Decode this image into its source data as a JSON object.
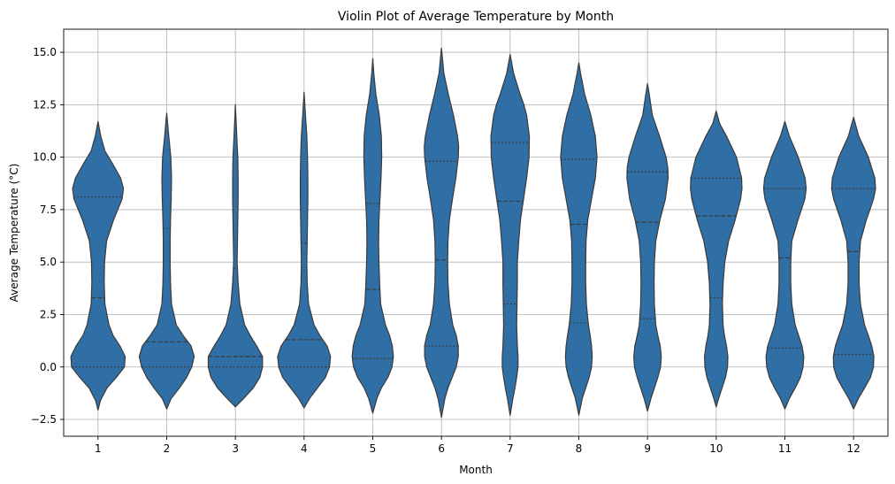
{
  "chart_data": {
    "type": "violin",
    "title": "Violin Plot of Average Temperature by Month",
    "xlabel": "Month",
    "ylabel": "Average Temperature (°C)",
    "categories": [
      "1",
      "2",
      "3",
      "4",
      "5",
      "6",
      "7",
      "8",
      "9",
      "10",
      "11",
      "12"
    ],
    "ylim": [
      -3.3,
      16.1
    ],
    "yticks": [
      -2.5,
      0.0,
      2.5,
      5.0,
      7.5,
      10.0,
      12.5,
      15.0
    ],
    "ytick_labels": [
      "−2.5",
      "0.0",
      "2.5",
      "5.0",
      "7.5",
      "10.0",
      "12.5",
      "15.0"
    ],
    "grid": true,
    "fill_color": "#2f6fa5",
    "edge_color": "#3a3a3a",
    "inner": "quartile",
    "violins": [
      {
        "month": "1",
        "min": -2.05,
        "max": 11.7,
        "q1": 0.0,
        "median": 3.3,
        "q3": 8.1,
        "density": [
          [
            -2.05,
            0
          ],
          [
            -1.6,
            0.07
          ],
          [
            -1.0,
            0.26
          ],
          [
            -0.5,
            0.53
          ],
          [
            0.0,
            0.77
          ],
          [
            0.5,
            0.79
          ],
          [
            1.0,
            0.64
          ],
          [
            1.5,
            0.44
          ],
          [
            2.0,
            0.32
          ],
          [
            3.0,
            0.2
          ],
          [
            4.0,
            0.18
          ],
          [
            5.0,
            0.19
          ],
          [
            6.0,
            0.25
          ],
          [
            7.0,
            0.45
          ],
          [
            8.0,
            0.7
          ],
          [
            8.5,
            0.74
          ],
          [
            9.0,
            0.66
          ],
          [
            9.7,
            0.42
          ],
          [
            10.3,
            0.2
          ],
          [
            11.0,
            0.08
          ],
          [
            11.7,
            0
          ]
        ]
      },
      {
        "month": "2",
        "min": -2.0,
        "max": 12.1,
        "q1": 0.0,
        "median": 1.2,
        "q3": 6.6,
        "density": [
          [
            -2.0,
            0
          ],
          [
            -1.5,
            0.13
          ],
          [
            -1.0,
            0.37
          ],
          [
            -0.5,
            0.58
          ],
          [
            0.0,
            0.73
          ],
          [
            0.5,
            0.8
          ],
          [
            1.0,
            0.71
          ],
          [
            1.5,
            0.48
          ],
          [
            2.0,
            0.28
          ],
          [
            3.0,
            0.14
          ],
          [
            4.0,
            0.11
          ],
          [
            5.0,
            0.1
          ],
          [
            6.0,
            0.1
          ],
          [
            7.0,
            0.11
          ],
          [
            8.0,
            0.13
          ],
          [
            9.0,
            0.14
          ],
          [
            10.0,
            0.12
          ],
          [
            11.0,
            0.06
          ],
          [
            12.1,
            0
          ]
        ]
      },
      {
        "month": "3",
        "min": -1.9,
        "max": 12.5,
        "q1": 0.0,
        "median": 0.5,
        "q3": 4.7,
        "density": [
          [
            -1.9,
            0
          ],
          [
            -1.5,
            0.24
          ],
          [
            -1.0,
            0.52
          ],
          [
            -0.5,
            0.71
          ],
          [
            0.0,
            0.79
          ],
          [
            0.5,
            0.79
          ],
          [
            1.0,
            0.62
          ],
          [
            1.5,
            0.43
          ],
          [
            2.0,
            0.27
          ],
          [
            3.0,
            0.13
          ],
          [
            4.0,
            0.08
          ],
          [
            5.0,
            0.05
          ],
          [
            6.0,
            0.06
          ],
          [
            7.0,
            0.07
          ],
          [
            8.0,
            0.08
          ],
          [
            9.0,
            0.08
          ],
          [
            10.0,
            0.07
          ],
          [
            11.0,
            0.04
          ],
          [
            12.5,
            0
          ]
        ]
      },
      {
        "month": "4",
        "min": -1.95,
        "max": 13.1,
        "q1": 0.0,
        "median": 1.3,
        "q3": 5.9,
        "density": [
          [
            -1.95,
            0
          ],
          [
            -1.5,
            0.16
          ],
          [
            -1.0,
            0.39
          ],
          [
            -0.5,
            0.62
          ],
          [
            0.0,
            0.74
          ],
          [
            0.5,
            0.77
          ],
          [
            1.0,
            0.67
          ],
          [
            1.5,
            0.46
          ],
          [
            2.0,
            0.29
          ],
          [
            3.0,
            0.13
          ],
          [
            4.0,
            0.09
          ],
          [
            5.0,
            0.08
          ],
          [
            6.0,
            0.09
          ],
          [
            7.0,
            0.1
          ],
          [
            8.0,
            0.11
          ],
          [
            9.0,
            0.11
          ],
          [
            10.0,
            0.1
          ],
          [
            11.0,
            0.08
          ],
          [
            12.0,
            0.04
          ],
          [
            13.1,
            0
          ]
        ]
      },
      {
        "month": "5",
        "min": -2.2,
        "max": 14.7,
        "q1": 0.4,
        "median": 3.7,
        "q3": 7.8,
        "density": [
          [
            -2.2,
            0
          ],
          [
            -1.5,
            0.12
          ],
          [
            -1.0,
            0.25
          ],
          [
            -0.5,
            0.44
          ],
          [
            0.0,
            0.56
          ],
          [
            0.5,
            0.6
          ],
          [
            1.0,
            0.57
          ],
          [
            1.5,
            0.49
          ],
          [
            2.0,
            0.37
          ],
          [
            3.0,
            0.23
          ],
          [
            4.0,
            0.2
          ],
          [
            5.0,
            0.18
          ],
          [
            6.0,
            0.17
          ],
          [
            7.0,
            0.18
          ],
          [
            8.0,
            0.21
          ],
          [
            9.0,
            0.24
          ],
          [
            10.0,
            0.26
          ],
          [
            11.0,
            0.25
          ],
          [
            12.0,
            0.19
          ],
          [
            13.0,
            0.09
          ],
          [
            14.0,
            0.03
          ],
          [
            14.7,
            0
          ]
        ]
      },
      {
        "month": "6",
        "min": -2.4,
        "max": 15.2,
        "q1": 1.0,
        "median": 5.1,
        "q3": 9.8,
        "density": [
          [
            -2.4,
            0
          ],
          [
            -1.5,
            0.1
          ],
          [
            -1.0,
            0.19
          ],
          [
            -0.5,
            0.31
          ],
          [
            0.0,
            0.43
          ],
          [
            0.5,
            0.49
          ],
          [
            1.0,
            0.49
          ],
          [
            1.5,
            0.43
          ],
          [
            2.0,
            0.33
          ],
          [
            3.0,
            0.23
          ],
          [
            4.0,
            0.19
          ],
          [
            5.0,
            0.18
          ],
          [
            6.0,
            0.19
          ],
          [
            7.0,
            0.23
          ],
          [
            8.0,
            0.32
          ],
          [
            9.0,
            0.42
          ],
          [
            10.0,
            0.49
          ],
          [
            10.5,
            0.5
          ],
          [
            11.0,
            0.47
          ],
          [
            12.0,
            0.35
          ],
          [
            13.0,
            0.2
          ],
          [
            14.0,
            0.07
          ],
          [
            15.2,
            0
          ]
        ]
      },
      {
        "month": "7",
        "min": -2.3,
        "max": 14.9,
        "q1": 3.0,
        "median": 7.9,
        "q3": 10.7,
        "density": [
          [
            -2.3,
            0
          ],
          [
            -1.5,
            0.08
          ],
          [
            -1.0,
            0.14
          ],
          [
            -0.5,
            0.19
          ],
          [
            0.0,
            0.23
          ],
          [
            0.5,
            0.23
          ],
          [
            1.0,
            0.21
          ],
          [
            2.0,
            0.19
          ],
          [
            3.0,
            0.2
          ],
          [
            4.0,
            0.21
          ],
          [
            5.0,
            0.21
          ],
          [
            6.0,
            0.25
          ],
          [
            7.0,
            0.3
          ],
          [
            8.0,
            0.39
          ],
          [
            9.0,
            0.48
          ],
          [
            10.0,
            0.55
          ],
          [
            11.0,
            0.56
          ],
          [
            12.0,
            0.48
          ],
          [
            12.5,
            0.4
          ],
          [
            13.0,
            0.29
          ],
          [
            14.0,
            0.1
          ],
          [
            14.9,
            0
          ]
        ]
      },
      {
        "month": "8",
        "min": -2.3,
        "max": 14.5,
        "q1": 2.1,
        "median": 6.8,
        "q3": 9.9,
        "density": [
          [
            -2.3,
            0
          ],
          [
            -1.5,
            0.1
          ],
          [
            -1.0,
            0.2
          ],
          [
            -0.5,
            0.3
          ],
          [
            0.0,
            0.37
          ],
          [
            0.5,
            0.39
          ],
          [
            1.0,
            0.37
          ],
          [
            1.5,
            0.33
          ],
          [
            2.0,
            0.28
          ],
          [
            3.0,
            0.22
          ],
          [
            4.0,
            0.2
          ],
          [
            5.0,
            0.2
          ],
          [
            6.0,
            0.21
          ],
          [
            7.0,
            0.26
          ],
          [
            8.0,
            0.37
          ],
          [
            9.0,
            0.48
          ],
          [
            10.0,
            0.53
          ],
          [
            11.0,
            0.48
          ],
          [
            12.0,
            0.35
          ],
          [
            13.0,
            0.17
          ],
          [
            14.0,
            0.05
          ],
          [
            14.5,
            0
          ]
        ]
      },
      {
        "month": "9",
        "min": -2.1,
        "max": 13.5,
        "q1": 2.3,
        "median": 6.9,
        "q3": 9.3,
        "density": [
          [
            -2.1,
            0
          ],
          [
            -1.5,
            0.1
          ],
          [
            -1.0,
            0.2
          ],
          [
            -0.5,
            0.3
          ],
          [
            0.0,
            0.38
          ],
          [
            0.5,
            0.4
          ],
          [
            1.0,
            0.37
          ],
          [
            1.5,
            0.3
          ],
          [
            2.0,
            0.24
          ],
          [
            3.0,
            0.2
          ],
          [
            4.0,
            0.19
          ],
          [
            5.0,
            0.2
          ],
          [
            6.0,
            0.24
          ],
          [
            7.0,
            0.36
          ],
          [
            8.0,
            0.52
          ],
          [
            9.0,
            0.6
          ],
          [
            9.5,
            0.59
          ],
          [
            10.0,
            0.54
          ],
          [
            11.0,
            0.35
          ],
          [
            12.0,
            0.14
          ],
          [
            13.0,
            0.05
          ],
          [
            13.5,
            0
          ]
        ]
      },
      {
        "month": "10",
        "min": -1.9,
        "max": 12.2,
        "q1": 3.3,
        "median": 7.2,
        "q3": 9.0,
        "density": [
          [
            -1.9,
            0
          ],
          [
            -1.5,
            0.07
          ],
          [
            -1.0,
            0.17
          ],
          [
            -0.5,
            0.27
          ],
          [
            0.0,
            0.33
          ],
          [
            0.5,
            0.34
          ],
          [
            1.0,
            0.3
          ],
          [
            1.5,
            0.24
          ],
          [
            2.0,
            0.2
          ],
          [
            3.0,
            0.18
          ],
          [
            4.0,
            0.2
          ],
          [
            5.0,
            0.25
          ],
          [
            6.0,
            0.36
          ],
          [
            7.0,
            0.55
          ],
          [
            8.0,
            0.71
          ],
          [
            8.5,
            0.75
          ],
          [
            9.0,
            0.74
          ],
          [
            10.0,
            0.59
          ],
          [
            11.0,
            0.3
          ],
          [
            11.6,
            0.1
          ],
          [
            12.2,
            0
          ]
        ]
      },
      {
        "month": "11",
        "min": -2.0,
        "max": 11.7,
        "q1": 0.9,
        "median": 5.2,
        "q3": 8.5,
        "density": [
          [
            -2.0,
            0
          ],
          [
            -1.5,
            0.13
          ],
          [
            -1.0,
            0.3
          ],
          [
            -0.5,
            0.45
          ],
          [
            0.0,
            0.53
          ],
          [
            0.5,
            0.55
          ],
          [
            1.0,
            0.5
          ],
          [
            1.5,
            0.4
          ],
          [
            2.0,
            0.3
          ],
          [
            3.0,
            0.2
          ],
          [
            4.0,
            0.17
          ],
          [
            5.0,
            0.17
          ],
          [
            6.0,
            0.2
          ],
          [
            7.0,
            0.38
          ],
          [
            8.0,
            0.58
          ],
          [
            8.5,
            0.62
          ],
          [
            9.0,
            0.59
          ],
          [
            10.0,
            0.39
          ],
          [
            11.0,
            0.13
          ],
          [
            11.7,
            0
          ]
        ]
      },
      {
        "month": "12",
        "min": -2.0,
        "max": 11.9,
        "q1": 0.6,
        "median": 5.5,
        "q3": 8.5,
        "density": [
          [
            -2.0,
            0
          ],
          [
            -1.5,
            0.14
          ],
          [
            -1.0,
            0.32
          ],
          [
            -0.5,
            0.49
          ],
          [
            0.0,
            0.58
          ],
          [
            0.5,
            0.59
          ],
          [
            1.0,
            0.53
          ],
          [
            1.5,
            0.43
          ],
          [
            2.0,
            0.32
          ],
          [
            3.0,
            0.2
          ],
          [
            4.0,
            0.16
          ],
          [
            5.0,
            0.16
          ],
          [
            6.0,
            0.2
          ],
          [
            7.0,
            0.37
          ],
          [
            8.0,
            0.58
          ],
          [
            8.5,
            0.64
          ],
          [
            9.0,
            0.62
          ],
          [
            10.0,
            0.43
          ],
          [
            11.0,
            0.15
          ],
          [
            11.9,
            0
          ]
        ]
      }
    ]
  }
}
